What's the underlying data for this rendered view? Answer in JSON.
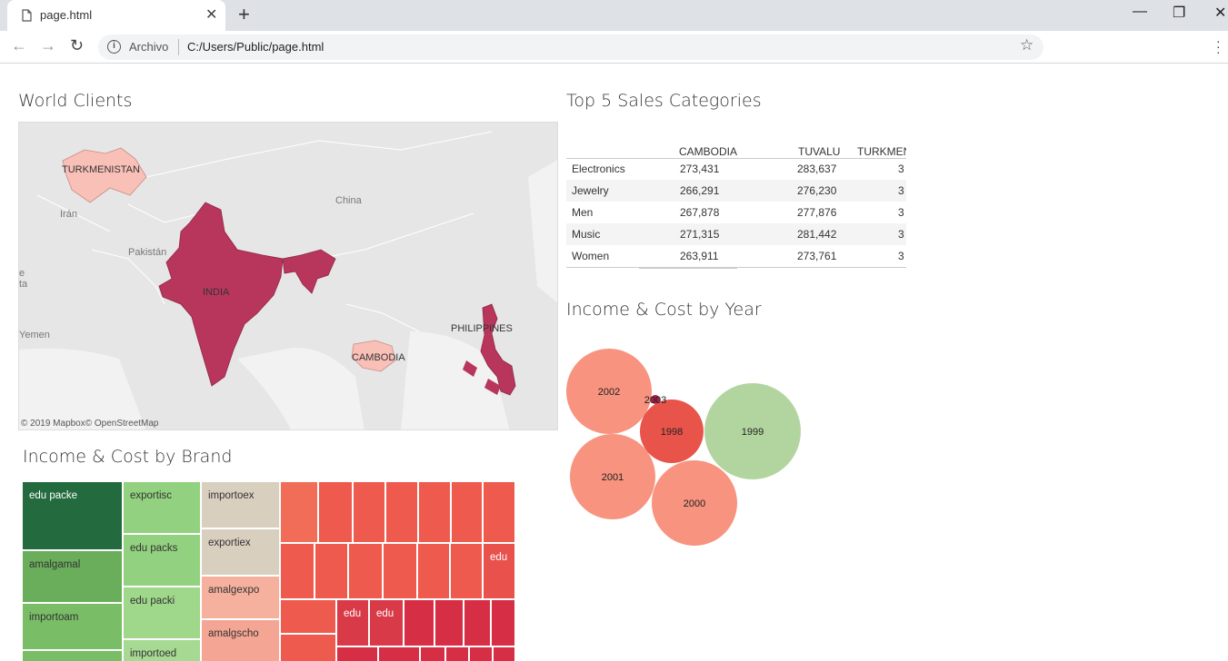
{
  "browser": {
    "tab_title": "page.html",
    "new_tab": "+",
    "close_tab": "✕",
    "scheme_label": "Archivo",
    "url": "C:/Users/Public/page.html",
    "minimize": "—",
    "restore": "❐",
    "close_window": "✕",
    "back": "←",
    "forward": "→",
    "reload": "↻",
    "star": "☆",
    "info": "i"
  },
  "world_clients": {
    "title": "World Clients",
    "highlighted": [
      "TURKMENISTAN",
      "INDIA",
      "CAMBODIA",
      "PHILIPPINES"
    ],
    "labels": {
      "turkmenistan": "TURKMENISTAN",
      "india": "INDIA",
      "cambodia": "CAMBODIA",
      "philippines": "PHILIPPINES",
      "china": "China",
      "iran": "Irán",
      "pakistan": "Pakistán",
      "yemen": "Yemen",
      "edge_ta": "ta",
      "edge_e": "e"
    },
    "attribution": "© 2019 Mapbox© OpenStreetMap",
    "colors": {
      "high": "#b8365c",
      "low": "#f9c0b8"
    }
  },
  "top5": {
    "title": "Top 5 Sales Categories",
    "columns": [
      "CAMBODIA",
      "TUVALU",
      "TURKMEN"
    ],
    "rows": [
      {
        "label": "Electronics",
        "values": [
          "273,431",
          "283,637",
          "3"
        ]
      },
      {
        "label": "Jewelry",
        "values": [
          "266,291",
          "276,230",
          "3"
        ]
      },
      {
        "label": "Men",
        "values": [
          "267,878",
          "277,876",
          "3"
        ]
      },
      {
        "label": "Music",
        "values": [
          "271,315",
          "281,442",
          "3"
        ]
      },
      {
        "label": "Women",
        "values": [
          "263,911",
          "273,761",
          "3"
        ]
      }
    ]
  },
  "income_year": {
    "title": "Income & Cost by Year",
    "bubbles": [
      {
        "label": "2002",
        "color": "#f7937e"
      },
      {
        "label": "2003",
        "color": "#a8204a"
      },
      {
        "label": "1998",
        "color": "#e8534a"
      },
      {
        "label": "1999",
        "color": "#b2d5a0"
      },
      {
        "label": "2001",
        "color": "#f7937e"
      },
      {
        "label": "2000",
        "color": "#f7937e"
      }
    ]
  },
  "income_brand": {
    "title": "Income & Cost by Brand",
    "tiles": [
      {
        "label": "edu packe",
        "color": "#236b3e"
      },
      {
        "label": "amalgamal",
        "color": "#6aae5c"
      },
      {
        "label": "importoam",
        "color": "#79bd66"
      },
      {
        "label": "exportisc",
        "color": "#92d17f"
      },
      {
        "label": "edu packs",
        "color": "#92d17f"
      },
      {
        "label": "edu packi",
        "color": "#9fd78b"
      },
      {
        "label": "importoed",
        "color": "#a6da93"
      },
      {
        "label": "importoex",
        "color": "#d9cfbf"
      },
      {
        "label": "exportiex",
        "color": "#d9cfbf"
      },
      {
        "label": "amalgexpo",
        "color": "#f5b09e"
      },
      {
        "label": "amalgscho",
        "color": "#f5a593"
      },
      {
        "label": "edu",
        "color": "#e8514c"
      },
      {
        "label": "edu",
        "color": "#d93a48"
      },
      {
        "label": "edu",
        "color": "#d93a48"
      }
    ],
    "colors": {
      "red_light": "#f26d57",
      "red_mid": "#ee5a4e",
      "red_dark": "#d62e45"
    }
  }
}
